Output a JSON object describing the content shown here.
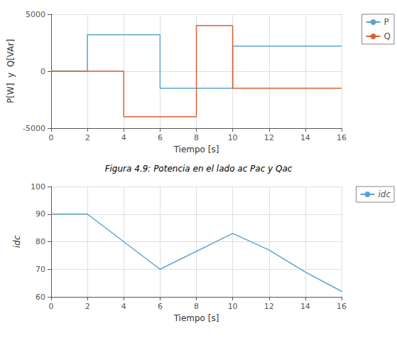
{
  "chart_data": [
    {
      "type": "step",
      "title": "Figura 4.9: Potencia en el lado ac Pac y Qac",
      "xlabel": "Tiempo [s]",
      "ylabel": "P[W]  y  Q[VAr]",
      "xlim": [
        0,
        16
      ],
      "xticks": [
        0,
        2,
        4,
        6,
        8,
        10,
        12,
        14,
        16
      ],
      "ylim": [
        -5000,
        5000
      ],
      "yticks": [
        -5000,
        0,
        5000
      ],
      "grid": true,
      "legend": "upper right",
      "series": [
        {
          "name": "P",
          "color": "#5ba3d0",
          "x": [
            0,
            2,
            2,
            6,
            6,
            10,
            10,
            16
          ],
          "values": [
            0,
            0,
            3200,
            3200,
            -1500,
            -1500,
            2200,
            2200
          ]
        },
        {
          "name": "Q",
          "color": "#d9622b",
          "x": [
            0,
            4,
            4,
            8,
            8,
            10,
            10,
            16
          ],
          "values": [
            0,
            0,
            -4000,
            -4000,
            4000,
            4000,
            -1500,
            -1500
          ]
        }
      ]
    },
    {
      "type": "line",
      "xlabel": "Tiempo [s]",
      "ylabel": "idc",
      "xlim": [
        0,
        16
      ],
      "xticks": [
        0,
        2,
        4,
        6,
        8,
        10,
        12,
        14,
        16
      ],
      "ylim": [
        60,
        100
      ],
      "yticks": [
        60,
        70,
        80,
        90,
        100
      ],
      "grid": true,
      "legend": "upper right",
      "series": [
        {
          "name": "idc",
          "color": "#5ba3d0",
          "x": [
            0,
            2,
            6,
            10,
            12,
            14,
            16
          ],
          "values": [
            90,
            90,
            70,
            83,
            77,
            69,
            62
          ]
        }
      ]
    }
  ]
}
